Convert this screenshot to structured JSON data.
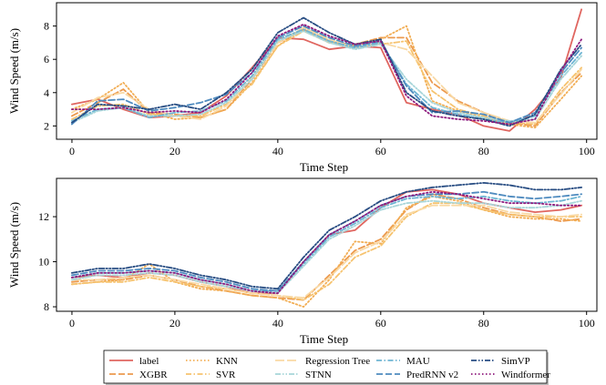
{
  "chart_data": [
    {
      "type": "line",
      "xlabel": "Time Step",
      "ylabel": "Wind Speed (m/s)",
      "xlim": [
        -3,
        102
      ],
      "ylim": [
        1.2,
        9.4
      ],
      "xticks": [
        0,
        20,
        40,
        60,
        80,
        100
      ],
      "yticks": [
        2,
        4,
        6,
        8
      ],
      "x": [
        0,
        5,
        10,
        15,
        20,
        25,
        30,
        35,
        40,
        45,
        50,
        55,
        60,
        65,
        70,
        75,
        80,
        85,
        90,
        95,
        99
      ],
      "series": [
        {
          "name": "label",
          "values": [
            3.3,
            3.6,
            3.0,
            2.5,
            2.6,
            2.8,
            3.8,
            5.5,
            7.3,
            7.2,
            6.6,
            6.8,
            6.7,
            3.4,
            3.0,
            2.7,
            2.0,
            1.7,
            3.0,
            4.9,
            9.0
          ]
        },
        {
          "name": "XGBR",
          "values": [
            2.6,
            3.4,
            4.2,
            2.8,
            2.7,
            2.5,
            3.0,
            4.8,
            7.0,
            7.8,
            7.0,
            6.9,
            7.3,
            7.3,
            4.6,
            3.5,
            2.8,
            2.2,
            2.0,
            4.0,
            5.2
          ]
        },
        {
          "name": "KNN",
          "values": [
            3.0,
            3.6,
            4.6,
            2.8,
            2.4,
            2.5,
            3.0,
            4.6,
            6.8,
            7.9,
            7.1,
            6.8,
            7.2,
            8.0,
            3.5,
            2.9,
            2.5,
            2.1,
            1.9,
            3.6,
            5.0
          ]
        },
        {
          "name": "SVR",
          "values": [
            2.4,
            3.2,
            3.3,
            2.7,
            2.6,
            2.6,
            3.3,
            4.5,
            6.8,
            7.7,
            7.0,
            6.7,
            6.9,
            7.1,
            4.1,
            3.0,
            2.6,
            2.2,
            2.1,
            4.2,
            5.5
          ]
        },
        {
          "name": "Regression Tree",
          "values": [
            2.8,
            3.7,
            4.0,
            3.0,
            2.6,
            2.4,
            3.2,
            4.9,
            7.0,
            7.9,
            7.2,
            6.7,
            7.0,
            6.6,
            5.0,
            3.4,
            2.8,
            2.3,
            2.2,
            3.9,
            5.4
          ]
        },
        {
          "name": "STNN",
          "values": [
            2.2,
            2.9,
            3.1,
            2.6,
            2.6,
            2.7,
            3.4,
            4.8,
            7.1,
            7.7,
            7.0,
            6.6,
            6.9,
            4.8,
            3.4,
            2.8,
            2.5,
            2.3,
            2.4,
            4.8,
            6.2
          ]
        },
        {
          "name": "MAU",
          "values": [
            2.3,
            3.0,
            3.1,
            2.5,
            2.8,
            2.9,
            3.5,
            5.0,
            7.2,
            7.8,
            7.1,
            6.7,
            7.0,
            4.5,
            3.1,
            2.7,
            2.4,
            2.2,
            2.6,
            5.0,
            6.4
          ]
        },
        {
          "name": "PredRNN v2",
          "values": [
            2.1,
            3.5,
            3.6,
            2.9,
            3.1,
            3.4,
            3.9,
            5.2,
            7.3,
            8.0,
            7.3,
            6.8,
            7.1,
            4.4,
            2.8,
            2.9,
            2.7,
            2.2,
            2.8,
            5.2,
            6.7
          ]
        },
        {
          "name": "SimVP",
          "values": [
            2.2,
            3.3,
            3.2,
            3.0,
            3.3,
            3.0,
            4.0,
            5.4,
            7.6,
            8.5,
            7.6,
            6.9,
            7.2,
            4.0,
            2.9,
            2.6,
            2.4,
            2.0,
            2.7,
            5.4,
            6.9
          ]
        },
        {
          "name": "Windformer",
          "values": [
            3.0,
            3.0,
            3.1,
            2.8,
            2.9,
            2.8,
            3.6,
            5.2,
            7.4,
            8.1,
            7.4,
            6.9,
            7.1,
            3.8,
            2.6,
            2.4,
            2.3,
            2.1,
            2.4,
            5.3,
            7.2
          ]
        }
      ]
    },
    {
      "type": "line",
      "xlabel": "Time Step",
      "ylabel": "Wind Speed (m/s)",
      "xlim": [
        -3,
        102
      ],
      "ylim": [
        7.8,
        13.7
      ],
      "xticks": [
        0,
        20,
        40,
        60,
        80,
        100
      ],
      "yticks": [
        8,
        10,
        12
      ],
      "x": [
        0,
        5,
        10,
        15,
        20,
        25,
        30,
        35,
        40,
        45,
        50,
        55,
        60,
        65,
        70,
        75,
        80,
        85,
        90,
        95,
        99
      ],
      "series": [
        {
          "name": "label",
          "values": [
            9.3,
            9.4,
            9.3,
            9.5,
            9.4,
            9.1,
            8.9,
            8.6,
            8.6,
            10.0,
            11.2,
            11.4,
            12.4,
            13.1,
            13.2,
            13.0,
            12.6,
            12.4,
            12.2,
            12.3,
            12.5
          ]
        },
        {
          "name": "XGBR",
          "values": [
            9.1,
            9.2,
            9.2,
            9.4,
            9.2,
            8.9,
            8.7,
            8.5,
            8.4,
            8.3,
            9.4,
            10.5,
            11.0,
            12.3,
            13.0,
            12.8,
            12.4,
            12.1,
            12.0,
            11.8,
            11.9
          ]
        },
        {
          "name": "KNN",
          "values": [
            9.0,
            9.1,
            9.2,
            9.9,
            9.1,
            8.8,
            8.7,
            8.5,
            8.4,
            8.0,
            9.2,
            10.9,
            10.8,
            12.4,
            12.9,
            12.7,
            12.3,
            12.0,
            11.9,
            11.9,
            11.8
          ]
        },
        {
          "name": "SVR",
          "values": [
            9.0,
            9.1,
            9.1,
            9.3,
            9.1,
            8.9,
            8.8,
            8.6,
            8.5,
            8.3,
            9.0,
            10.2,
            10.7,
            12.0,
            12.6,
            12.6,
            12.3,
            12.1,
            12.0,
            12.0,
            12.0
          ]
        },
        {
          "name": "Regression Tree",
          "values": [
            9.2,
            9.2,
            9.3,
            9.4,
            9.2,
            9.0,
            8.8,
            8.6,
            8.5,
            8.4,
            9.3,
            10.4,
            10.9,
            12.1,
            12.5,
            12.5,
            12.5,
            12.2,
            12.1,
            12.0,
            12.1
          ]
        },
        {
          "name": "STNN",
          "values": [
            9.2,
            9.4,
            9.4,
            9.5,
            9.4,
            9.1,
            8.9,
            8.7,
            8.6,
            9.8,
            11.0,
            11.6,
            12.3,
            12.6,
            12.7,
            12.6,
            12.6,
            12.4,
            12.4,
            12.5,
            12.7
          ]
        },
        {
          "name": "MAU",
          "values": [
            9.3,
            9.5,
            9.5,
            9.6,
            9.5,
            9.2,
            9.0,
            8.7,
            8.7,
            9.9,
            11.1,
            11.7,
            12.4,
            12.8,
            12.9,
            12.8,
            12.9,
            12.7,
            12.6,
            12.7,
            12.9
          ]
        },
        {
          "name": "PredRNN v2",
          "values": [
            9.4,
            9.6,
            9.6,
            9.7,
            9.6,
            9.3,
            9.1,
            8.8,
            8.7,
            10.0,
            11.2,
            11.8,
            12.5,
            12.9,
            13.0,
            13.0,
            13.1,
            12.9,
            12.8,
            12.9,
            13.0
          ]
        },
        {
          "name": "SimVP",
          "values": [
            9.5,
            9.7,
            9.7,
            9.9,
            9.7,
            9.4,
            9.2,
            8.9,
            8.8,
            10.2,
            11.4,
            12.0,
            12.7,
            13.1,
            13.3,
            13.4,
            13.5,
            13.4,
            13.2,
            13.2,
            13.3
          ]
        },
        {
          "name": "Windformer",
          "values": [
            9.3,
            9.5,
            9.5,
            9.6,
            9.5,
            9.2,
            9.0,
            8.7,
            8.6,
            10.0,
            11.2,
            11.8,
            12.5,
            12.9,
            13.1,
            13.0,
            12.8,
            12.6,
            12.6,
            12.5,
            12.5
          ]
        }
      ]
    }
  ],
  "legend": {
    "entries": [
      {
        "label": "label",
        "color": "#e06660",
        "dash": "solid"
      },
      {
        "label": "XGBR",
        "color": "#ec9a4e",
        "dash": "dashed"
      },
      {
        "label": "KNN",
        "color": "#f2ae55",
        "dash": "dotted"
      },
      {
        "label": "SVR",
        "color": "#f6c36f",
        "dash": "dashdot"
      },
      {
        "label": "Regression Tree",
        "color": "#f9d9a4",
        "dash": "longdash"
      },
      {
        "label": "STNN",
        "color": "#a8d6da",
        "dash": "dashdotdot"
      },
      {
        "label": "MAU",
        "color": "#6eb5d3",
        "dash": "dashdot"
      },
      {
        "label": "PredRNN v2",
        "color": "#4f8bbf",
        "dash": "dashed"
      },
      {
        "label": "SimVP",
        "color": "#274c82",
        "dash": "dashdotdot"
      },
      {
        "label": "Windformer",
        "color": "#8e1b7e",
        "dash": "dotted"
      }
    ]
  }
}
